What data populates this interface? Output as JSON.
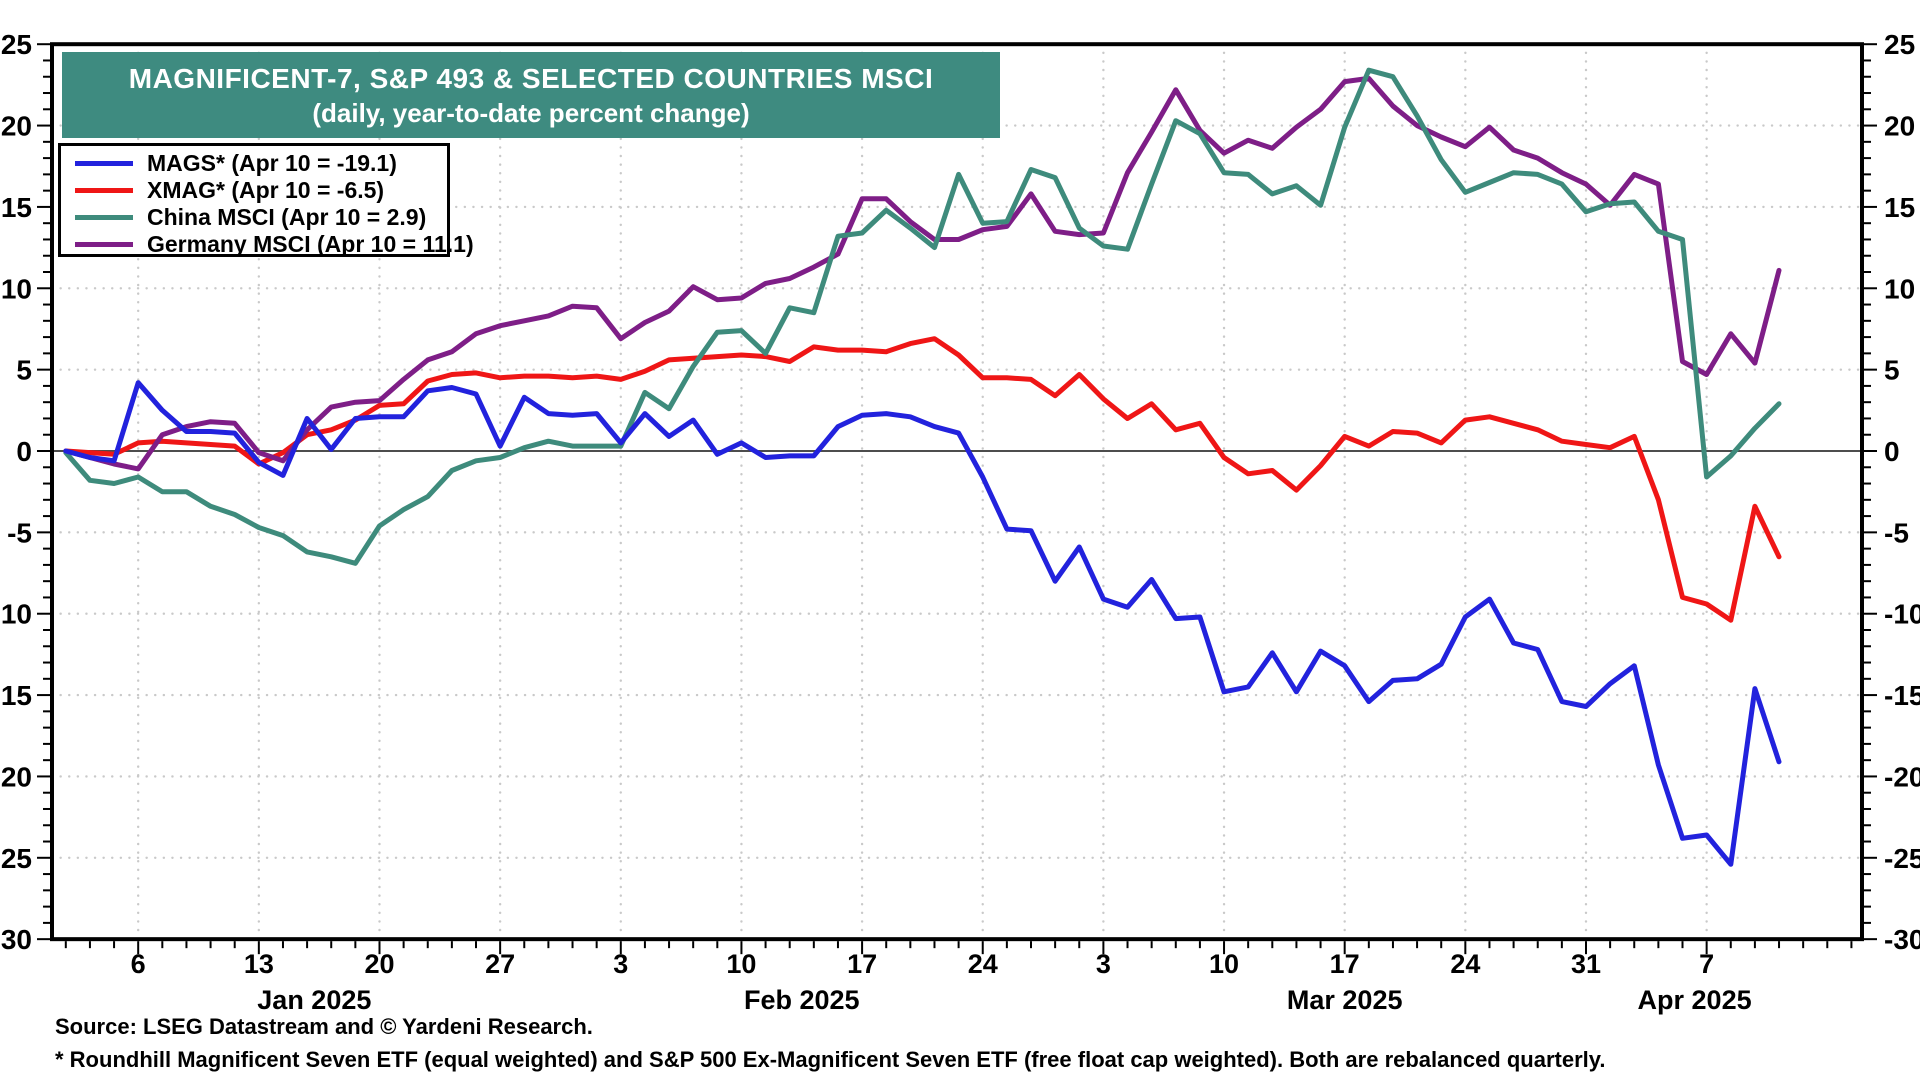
{
  "title": {
    "line1": "MAGNIFICENT-7, S&P 493 & SELECTED COUNTRIES MSCI",
    "line2": "(daily, year-to-date percent change)"
  },
  "banner_color": "#3E8B80",
  "footer": {
    "source": "Source: LSEG Datastream and © Yardeni Research.",
    "note": "* Roundhill Magnificent Seven ETF (equal weighted) and S&P 500 Ex-Magnificent Seven ETF (free float cap weighted). Both are rebalanced quarterly."
  },
  "legend": [
    {
      "label": "MAGS* (Apr 10 = -19.1)",
      "color": "#2222DD"
    },
    {
      "label": "XMAG* (Apr 10 = -6.5)",
      "color": "#EF1616"
    },
    {
      "label": "China MSCI (Apr 10 = 2.9)",
      "color": "#3E8B7C"
    },
    {
      "label": "Germany MSCI (Apr 10 = 11.1)",
      "color": "#7E1E87"
    }
  ],
  "chart_data": {
    "type": "line",
    "title": "MAGNIFICENT-7, S&P 493 & SELECTED COUNTRIES MSCI (daily, year-to-date percent change)",
    "ylabel": "percent change year-to-date",
    "ylim": [
      -30,
      25
    ],
    "ytick_step": 5,
    "grid": "dotted",
    "legend_position": "top-left",
    "y_ticks": [
      25,
      20,
      15,
      10,
      5,
      0,
      -5,
      -10,
      -15,
      -20,
      -25,
      -30
    ],
    "x": [
      "Dec 31",
      "Jan 2",
      "Jan 3",
      "Jan 6",
      "Jan 7",
      "Jan 8",
      "Jan 9",
      "Jan 10",
      "Jan 13",
      "Jan 14",
      "Jan 15",
      "Jan 16",
      "Jan 17",
      "Jan 20",
      "Jan 21",
      "Jan 22",
      "Jan 23",
      "Jan 24",
      "Jan 27",
      "Jan 28",
      "Jan 29",
      "Jan 30",
      "Jan 31",
      "Feb 3",
      "Feb 4",
      "Feb 5",
      "Feb 6",
      "Feb 7",
      "Feb 10",
      "Feb 11",
      "Feb 12",
      "Feb 13",
      "Feb 14",
      "Feb 17",
      "Feb 18",
      "Feb 19",
      "Feb 20",
      "Feb 21",
      "Feb 24",
      "Feb 25",
      "Feb 26",
      "Feb 27",
      "Feb 28",
      "Mar 3",
      "Mar 4",
      "Mar 5",
      "Mar 6",
      "Mar 7",
      "Mar 10",
      "Mar 11",
      "Mar 12",
      "Mar 13",
      "Mar 14",
      "Mar 17",
      "Mar 18",
      "Mar 19",
      "Mar 20",
      "Mar 21",
      "Mar 24",
      "Mar 25",
      "Mar 26",
      "Mar 27",
      "Mar 28",
      "Mar 31",
      "Apr 1",
      "Apr 2",
      "Apr 3",
      "Apr 4",
      "Apr 7",
      "Apr 8",
      "Apr 9",
      "Apr 10"
    ],
    "week_ticks": [
      {
        "day": 3,
        "label": "6"
      },
      {
        "day": 8,
        "label": "13"
      },
      {
        "day": 13,
        "label": "20"
      },
      {
        "day": 18,
        "label": "27"
      },
      {
        "day": 23,
        "label": "3"
      },
      {
        "day": 28,
        "label": "10"
      },
      {
        "day": 33,
        "label": "17"
      },
      {
        "day": 38,
        "label": "24"
      },
      {
        "day": 43,
        "label": "3"
      },
      {
        "day": 48,
        "label": "10"
      },
      {
        "day": 53,
        "label": "17"
      },
      {
        "day": 58,
        "label": "24"
      },
      {
        "day": 63,
        "label": "31"
      },
      {
        "day": 68,
        "label": "7"
      }
    ],
    "month_labels": [
      {
        "day": 10.3,
        "label": "Jan 2025"
      },
      {
        "day": 30.5,
        "label": "Feb 2025"
      },
      {
        "day": 53.0,
        "label": "Mar 2025"
      },
      {
        "day": 67.5,
        "label": "Apr 2025"
      }
    ],
    "series": [
      {
        "name": "XMAG*",
        "color": "#EF1616",
        "values": [
          0,
          -0.1,
          -0.2,
          0.5,
          0.6,
          0.5,
          0.4,
          0.3,
          -0.8,
          -0.1,
          1.0,
          1.3,
          1.9,
          2.8,
          2.9,
          4.3,
          4.7,
          4.8,
          4.5,
          4.6,
          4.6,
          4.5,
          4.6,
          4.4,
          4.9,
          5.6,
          5.7,
          5.8,
          5.9,
          5.8,
          5.5,
          6.4,
          6.2,
          6.2,
          6.1,
          6.6,
          6.9,
          5.9,
          4.5,
          4.5,
          4.4,
          3.4,
          4.7,
          3.2,
          2.0,
          2.9,
          1.3,
          1.7,
          -0.4,
          -1.4,
          -1.2,
          -2.4,
          -0.9,
          0.9,
          0.3,
          1.2,
          1.1,
          0.5,
          1.9,
          2.1,
          1.7,
          1.3,
          0.6,
          0.4,
          0.2,
          0.9,
          -3.0,
          -9.0,
          -9.4,
          -10.4,
          -3.4,
          -6.5
        ]
      },
      {
        "name": "Germany MSCI",
        "color": "#7E1E87",
        "values": [
          0,
          -0.4,
          -0.8,
          -1.1,
          1.0,
          1.5,
          1.8,
          1.7,
          -0.1,
          -0.6,
          1.3,
          2.7,
          3.0,
          3.1,
          4.4,
          5.6,
          6.1,
          7.2,
          7.7,
          8.0,
          8.3,
          8.9,
          8.8,
          6.9,
          7.9,
          8.6,
          10.1,
          9.3,
          9.4,
          10.3,
          10.6,
          11.3,
          12.1,
          15.5,
          15.5,
          14.1,
          13.0,
          13.0,
          13.6,
          13.8,
          15.8,
          13.5,
          13.3,
          13.4,
          17.1,
          19.6,
          22.2,
          19.7,
          18.3,
          19.1,
          18.6,
          19.9,
          21.0,
          22.7,
          22.9,
          21.2,
          20.0,
          19.3,
          18.7,
          19.9,
          18.5,
          18.0,
          17.1,
          16.4,
          15.1,
          17.0,
          16.4,
          5.5,
          4.7,
          7.2,
          5.4,
          11.1
        ]
      },
      {
        "name": "China MSCI",
        "color": "#3E8B7C",
        "values": [
          -0.1,
          -1.8,
          -2.0,
          -1.6,
          -2.5,
          -2.5,
          -3.4,
          -3.9,
          -4.7,
          -5.2,
          -6.2,
          -6.5,
          -6.9,
          -4.6,
          -3.6,
          -2.8,
          -1.2,
          -0.6,
          -0.4,
          0.2,
          0.6,
          0.3,
          0.3,
          0.3,
          3.6,
          2.6,
          5.2,
          7.3,
          7.4,
          6.0,
          8.8,
          8.5,
          13.2,
          13.4,
          14.8,
          13.7,
          12.5,
          17.0,
          14.0,
          14.1,
          17.3,
          16.8,
          13.7,
          12.6,
          12.4,
          16.4,
          20.3,
          19.5,
          17.1,
          17.0,
          15.8,
          16.3,
          15.1,
          19.9,
          23.4,
          23.0,
          20.6,
          17.9,
          15.9,
          16.5,
          17.1,
          17.0,
          16.4,
          14.7,
          15.2,
          15.3,
          13.5,
          13.0,
          -1.6,
          -0.3,
          1.4,
          2.9
        ]
      },
      {
        "name": "MAGS*",
        "color": "#2222DD",
        "values": [
          0,
          -0.4,
          -0.6,
          4.2,
          2.5,
          1.2,
          1.2,
          1.1,
          -0.7,
          -1.5,
          2.0,
          0.1,
          2.0,
          2.1,
          2.1,
          3.7,
          3.9,
          3.5,
          0.3,
          3.3,
          2.3,
          2.2,
          2.3,
          0.5,
          2.3,
          0.9,
          1.9,
          -0.2,
          0.5,
          -0.4,
          -0.3,
          -0.3,
          1.5,
          2.2,
          2.3,
          2.1,
          1.5,
          1.1,
          -1.6,
          -4.8,
          -4.9,
          -8.0,
          -5.9,
          -9.1,
          -9.6,
          -7.9,
          -10.3,
          -10.2,
          -14.8,
          -14.5,
          -12.4,
          -14.8,
          -12.3,
          -13.2,
          -15.4,
          -14.1,
          -14.0,
          -13.1,
          -10.2,
          -9.1,
          -11.8,
          -12.2,
          -15.4,
          -15.7,
          -14.3,
          -13.2,
          -19.3,
          -23.8,
          -23.6,
          -25.4,
          -14.6,
          -19.1
        ]
      }
    ],
    "colors": {
      "grid": "#C9C9C9",
      "zero_line": "#4D4D4D",
      "frame": "#000000",
      "text": "#000000"
    }
  }
}
